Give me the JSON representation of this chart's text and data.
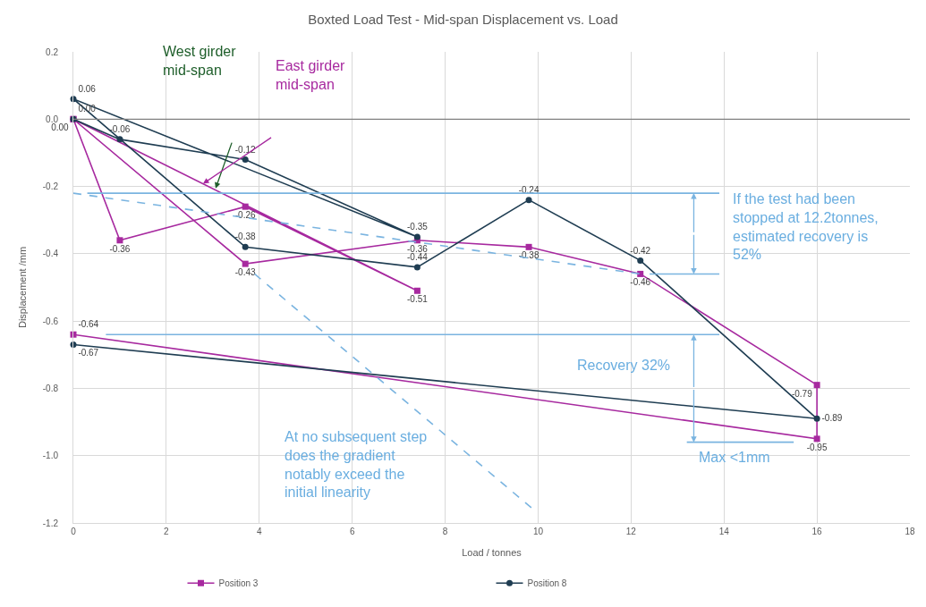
{
  "chart_data": {
    "type": "line",
    "title": "Boxted Load Test - Mid-span Displacement vs. Load",
    "xlabel": "Load / tonnes",
    "ylabel": "Displacement /mm",
    "xlim": [
      0,
      18
    ],
    "xticks": [
      0,
      2,
      4,
      6,
      8,
      10,
      12,
      14,
      16,
      18
    ],
    "ylim": [
      -1.2,
      0.2
    ],
    "yticks": [
      {
        "value": 0.2,
        "label": "0.2"
      },
      {
        "value": 0,
        "label": "0.0"
      },
      {
        "value": -0.2,
        "label": "-0.2"
      },
      {
        "value": -0.4,
        "label": "-0.4"
      },
      {
        "value": -0.6,
        "label": "-0.6"
      },
      {
        "value": -0.8,
        "label": "-0.8"
      },
      {
        "value": -1.0,
        "label": "-1.0"
      },
      {
        "value": -1.2,
        "label": "-1.2"
      }
    ],
    "grid": true,
    "legend": "bottom",
    "series": [
      {
        "name": "Position 3",
        "color": "#a7299f",
        "marker": "square",
        "x": [
          0,
          1,
          3.7,
          7.4,
          0,
          3.7,
          7.4,
          9.8,
          12.2,
          16,
          16,
          0
        ],
        "values": [
          0,
          -0.36,
          -0.26,
          -0.51,
          0,
          -0.43,
          -0.36,
          -0.38,
          -0.46,
          -0.79,
          -0.95,
          -0.64
        ],
        "value_labels": [
          "0.00",
          "-0.36",
          "-0.26",
          "-0.51",
          null,
          "-0.43",
          "-0.36",
          "-0.38",
          "-0.46",
          "-0.79",
          "-0.95",
          "-0.64"
        ]
      },
      {
        "name": "Position 8",
        "color": "#1f3d52",
        "marker": "circle",
        "x": [
          0,
          1,
          3.7,
          7.4,
          0,
          3.7,
          7.4,
          9.8,
          12.2,
          16,
          0
        ],
        "values": [
          0,
          -0.06,
          -0.12,
          -0.35,
          0.06,
          -0.38,
          -0.44,
          -0.24,
          -0.42,
          -0.89,
          -0.67
        ],
        "value_labels": [
          "0.00",
          "-0.06",
          "-0.12",
          "-0.35",
          "0.06",
          "-0.38",
          "-0.44",
          "-0.24",
          "-0.42",
          "-0.89",
          "-0.67"
        ]
      },
      {
        "color": "#7ab4e0",
        "marker": "none",
        "line_style": "dashed",
        "x": [
          0,
          12.2
        ],
        "values": [
          -0.22,
          -0.46
        ]
      },
      {
        "color": "#7ab4e0",
        "marker": "none",
        "line_style": "dashed",
        "x": [
          3.9,
          9.9
        ],
        "values": [
          -0.46,
          -1.16
        ]
      },
      {
        "color": "#7ab4e0",
        "marker": "none",
        "line_style": "solid",
        "x": [
          0.3,
          13.9
        ],
        "values": [
          -0.22,
          -0.22
        ]
      },
      {
        "color": "#7ab4e0",
        "marker": "none",
        "line_style": "solid",
        "x": [
          12.4,
          13.9
        ],
        "values": [
          -0.46,
          -0.46
        ]
      },
      {
        "color": "#7ab4e0",
        "marker": "none",
        "line_style": "solid",
        "x": [
          0.7,
          13.9
        ],
        "values": [
          -0.64,
          -0.64
        ]
      },
      {
        "color": "#7ab4e0",
        "marker": "none",
        "line_style": "solid",
        "x": [
          13.2,
          15.5
        ],
        "values": [
          -0.96,
          -0.96
        ]
      }
    ],
    "ref_lines": [
      {
        "axis": "y",
        "value": 0,
        "color": "#808080"
      }
    ],
    "annotations": [
      "West girder mid-span",
      "East girder mid-span",
      "If the test had been stopped at 12.2tonnes, estimated recovery is 52%",
      "Recovery 32%",
      "Max <1mm",
      "At no subsequent step does the gradient notably exceed the initial linearity"
    ]
  }
}
